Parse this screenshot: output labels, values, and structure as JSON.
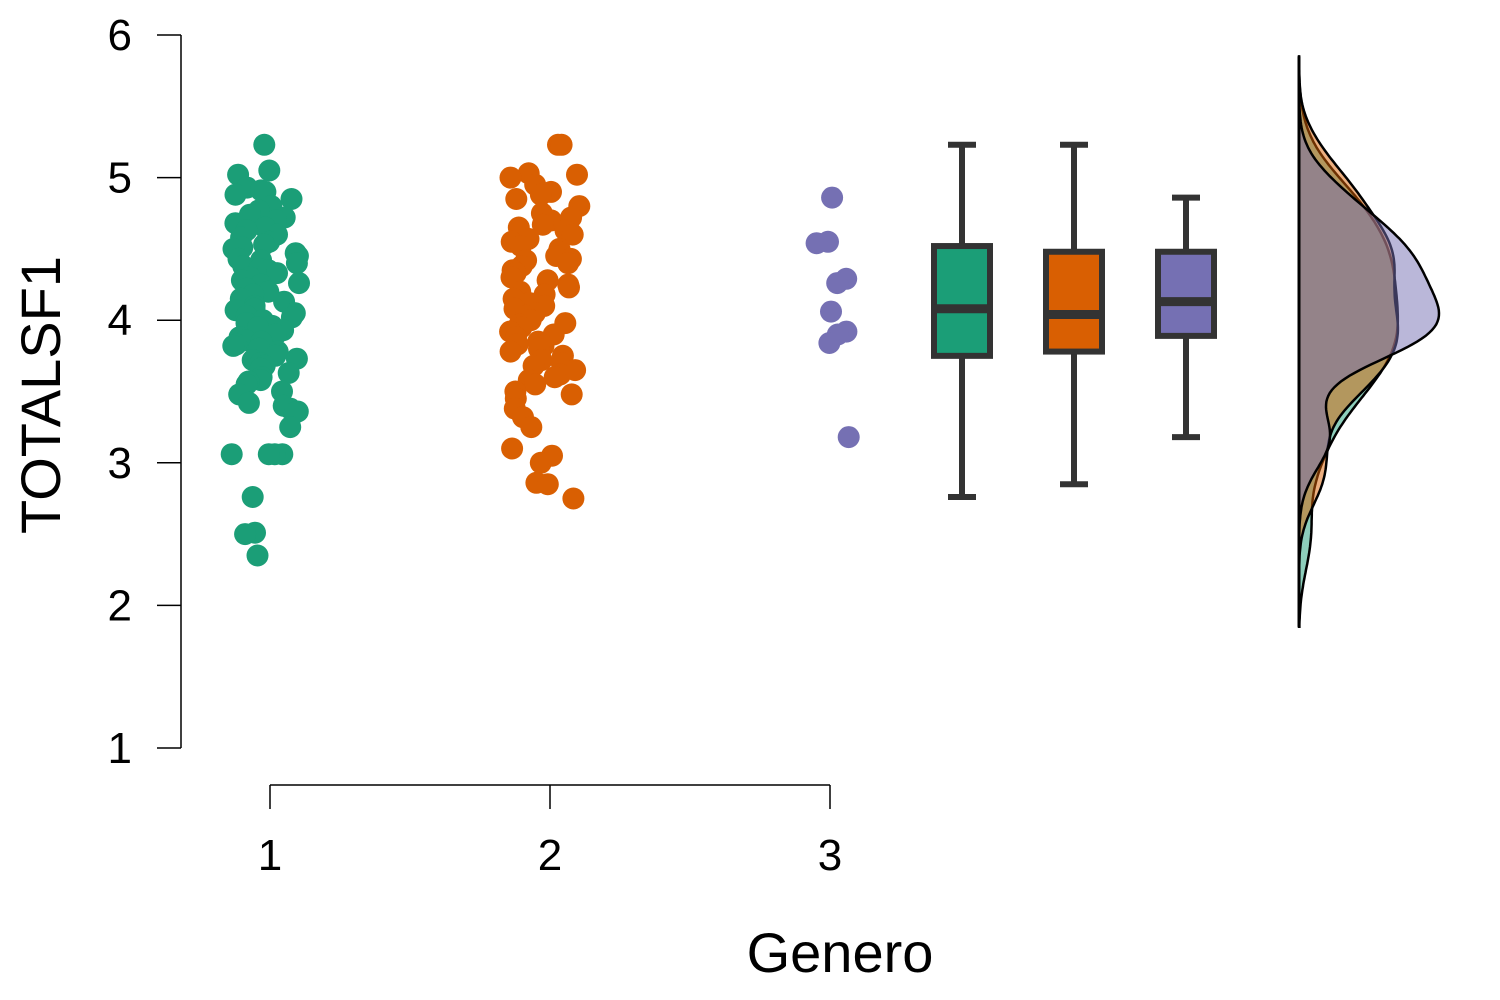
{
  "chart_data": {
    "type": "raincloud",
    "title": "",
    "xlabel": "Genero",
    "ylabel": "TOTALSF1",
    "ylim": [
      1,
      6
    ],
    "yticks": [
      "1",
      "2",
      "3",
      "4",
      "5",
      "6"
    ],
    "categories": [
      "1",
      "2",
      "3"
    ],
    "grid": false,
    "legend": "none",
    "series": [
      {
        "category": "1",
        "color": "#1b9e77",
        "points": [
          5.23,
          5.05,
          5.02,
          4.93,
          4.91,
          4.9,
          4.88,
          4.85,
          4.8,
          4.77,
          4.74,
          4.72,
          4.7,
          4.68,
          4.65,
          4.63,
          4.6,
          4.58,
          4.55,
          4.53,
          4.51,
          4.5,
          4.47,
          4.45,
          4.43,
          4.42,
          4.4,
          4.38,
          4.36,
          4.35,
          4.33,
          4.3,
          4.28,
          4.26,
          4.25,
          4.22,
          4.2,
          4.18,
          4.15,
          4.13,
          4.1,
          4.08,
          4.07,
          4.05,
          4.03,
          4.02,
          4.0,
          3.98,
          3.96,
          3.95,
          3.93,
          3.9,
          3.88,
          3.86,
          3.85,
          3.83,
          3.82,
          3.8,
          3.78,
          3.75,
          3.73,
          3.72,
          3.7,
          3.68,
          3.66,
          3.63,
          3.6,
          3.58,
          3.57,
          3.55,
          3.5,
          3.48,
          3.42,
          3.4,
          3.38,
          3.36,
          3.35,
          3.25,
          3.06,
          3.06,
          3.06,
          3.06,
          2.76,
          2.51,
          2.5,
          2.35
        ],
        "box": {
          "min": 2.76,
          "q1": 3.75,
          "median": 4.08,
          "q3": 4.52,
          "max": 5.23
        }
      },
      {
        "category": "2",
        "color": "#d95f02",
        "points": [
          5.23,
          5.23,
          5.03,
          5.02,
          5.0,
          4.95,
          4.9,
          4.88,
          4.85,
          4.8,
          4.75,
          4.72,
          4.7,
          4.67,
          4.65,
          4.63,
          4.6,
          4.57,
          4.55,
          4.52,
          4.5,
          4.48,
          4.45,
          4.43,
          4.42,
          4.4,
          4.38,
          4.35,
          4.33,
          4.3,
          4.28,
          4.25,
          4.23,
          4.2,
          4.18,
          4.15,
          4.12,
          4.1,
          4.08,
          4.05,
          4.03,
          4.0,
          3.98,
          3.97,
          3.95,
          3.92,
          3.9,
          3.88,
          3.85,
          3.83,
          3.82,
          3.8,
          3.78,
          3.75,
          3.72,
          3.7,
          3.68,
          3.65,
          3.62,
          3.6,
          3.58,
          3.55,
          3.5,
          3.48,
          3.45,
          3.38,
          3.32,
          3.25,
          3.1,
          3.05,
          3.0,
          2.86,
          2.85,
          2.75
        ],
        "box": {
          "min": 2.85,
          "q1": 3.78,
          "median": 4.04,
          "q3": 4.48,
          "max": 5.23
        }
      },
      {
        "category": "3",
        "color": "#7570b3",
        "points": [
          4.86,
          4.55,
          4.54,
          4.29,
          4.26,
          4.06,
          3.92,
          3.9,
          3.84,
          3.18
        ],
        "box": {
          "min": 3.18,
          "q1": 3.89,
          "median": 4.13,
          "q3": 4.48,
          "max": 4.86
        }
      }
    ]
  }
}
